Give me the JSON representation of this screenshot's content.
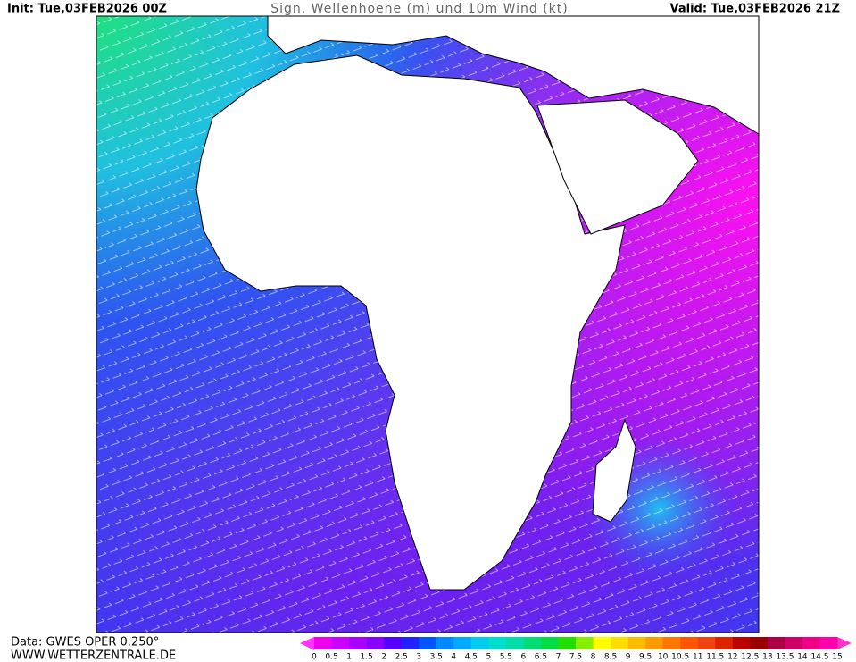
{
  "header": {
    "init": "Init: Tue,03FEB2026 00Z",
    "title": "Sign. Wellenhoehe (m) und 10m Wind (kt)",
    "valid": "Valid: Tue,03FEB2026 21Z"
  },
  "footer": {
    "source": "Data: GWES OPER 0.250°",
    "website": "WWW.WETTERZENTRALE.DE"
  },
  "colorbar": {
    "labels": [
      "0",
      "0.5",
      "1",
      "1.5",
      "2",
      "2.5",
      "3",
      "3.5",
      "4",
      "4.5",
      "5",
      "5.5",
      "6",
      "6.5",
      "7",
      "7.5",
      "8",
      "8.5",
      "9",
      "9.5",
      "10",
      "10.5",
      "11",
      "11.5",
      "12",
      "12.5",
      "13",
      "13.5",
      "14",
      "14.5",
      "15"
    ]
  }
}
